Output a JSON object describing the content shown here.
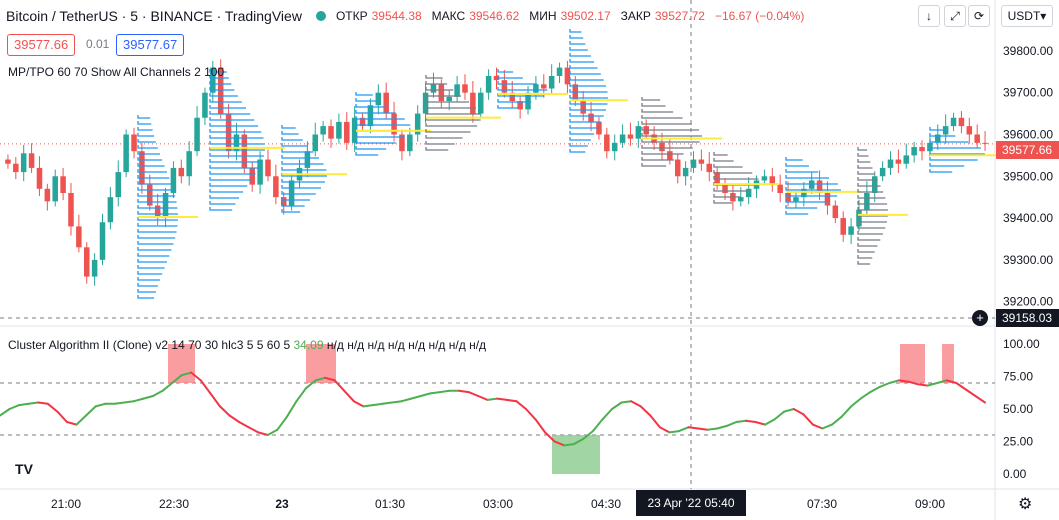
{
  "header": {
    "title": "Bitcoin / TetherUS · 5 · BINANCE · TradingView",
    "status_color": "#26a69a",
    "ohlc": [
      {
        "label": "ОТКР",
        "value": "39544.38"
      },
      {
        "label": "МАКС",
        "value": "39546.62"
      },
      {
        "label": "МИН",
        "value": "39502.17"
      },
      {
        "label": "ЗАКР",
        "value": "39527.72"
      }
    ],
    "change": "−16.67 (−0.04%)"
  },
  "trade": {
    "sell_price": "39577.66",
    "spread": "0.01",
    "buy_price": "39577.67"
  },
  "toolbar": {
    "down_icon": "↓",
    "expand_icon": "⤢",
    "refresh_icon": "⟳",
    "currency": "USDT▾"
  },
  "main_indicator": {
    "label": "MP/TPO 60 70 Show All Channels 2 100"
  },
  "sub_indicator": {
    "label": "Cluster Algorithm II (Clone) v2 14 70 30 hlc3 5 5 60 5",
    "value": "34.09",
    "na_values": [
      "н/д",
      "н/д",
      "н/д",
      "н/д",
      "н/д",
      "н/д",
      "н/д",
      "н/д"
    ]
  },
  "price_axis": {
    "ticks": [
      "39800.00",
      "39700.00",
      "39600.00",
      "39500.00",
      "39400.00",
      "39300.00",
      "39200.00"
    ],
    "current_price": "39577.66",
    "crosshair_price": "39158.03"
  },
  "osc_axis": {
    "ticks": [
      "100.00",
      "75.00",
      "50.00",
      "25.00",
      "0.00"
    ]
  },
  "time_axis": {
    "ticks": [
      "21:00",
      "22:30",
      "23",
      "01:30",
      "03:00",
      "04:30",
      "07:30",
      "09:00"
    ],
    "crosshair_date": "23 Apr '22  05:40"
  },
  "colors": {
    "up": "#26a69a",
    "down": "#ef5350",
    "profile_blue": "#2196f3",
    "profile_gray": "#787b86",
    "poc_yellow": "#ffeb3b"
  },
  "chart_data": {
    "type": "candlestick",
    "symbol": "Bitcoin / TetherUS",
    "interval": "5",
    "price_range": [
      39180,
      39850
    ],
    "closes": [
      39530,
      39510,
      39555,
      39520,
      39470,
      39440,
      39500,
      39460,
      39380,
      39330,
      39260,
      39300,
      39390,
      39450,
      39510,
      39600,
      39560,
      39480,
      39430,
      39400,
      39460,
      39520,
      39500,
      39560,
      39640,
      39700,
      39760,
      39650,
      39560,
      39600,
      39520,
      39480,
      39540,
      39500,
      39450,
      39430,
      39490,
      39520,
      39560,
      39600,
      39620,
      39590,
      39630,
      39580,
      39640,
      39620,
      39670,
      39700,
      39650,
      39600,
      39560,
      39600,
      39650,
      39700,
      39720,
      39680,
      39690,
      39720,
      39700,
      39650,
      39700,
      39740,
      39730,
      39700,
      39680,
      39660,
      39700,
      39720,
      39710,
      39740,
      39760,
      39720,
      39680,
      39650,
      39630,
      39600,
      39560,
      39580,
      39600,
      39590,
      39620,
      39600,
      39580,
      39560,
      39540,
      39500,
      39520,
      39540,
      39530,
      39510,
      39480,
      39460,
      39440,
      39450,
      39470,
      39490,
      39500,
      39480,
      39460,
      39440,
      39450,
      39470,
      39490,
      39460,
      39430,
      39400,
      39360,
      39380,
      39420,
      39460,
      39500,
      39520,
      39540,
      39530,
      39550,
      39570,
      39560,
      39580,
      39600,
      39620,
      39640,
      39620,
      39600,
      39580,
      39577.66
    ],
    "oscillator": {
      "range": [
        0,
        100
      ],
      "upper": 70,
      "lower": 30,
      "values": [
        45,
        50,
        53,
        54,
        55,
        54,
        48,
        40,
        38,
        45,
        52,
        54,
        54,
        55,
        56,
        58,
        60,
        64,
        70,
        76,
        78,
        72,
        62,
        52,
        45,
        40,
        36,
        32,
        30,
        34,
        44,
        56,
        66,
        72,
        74,
        72,
        64,
        56,
        52,
        53,
        54,
        55,
        56,
        58,
        60,
        62,
        63,
        64,
        64,
        63,
        60,
        57,
        58,
        57,
        56,
        50,
        42,
        32,
        25,
        22,
        23,
        27,
        33,
        42,
        50,
        55,
        56,
        52,
        45,
        36,
        32,
        33,
        36,
        35,
        34,
        35,
        37,
        40,
        41,
        40,
        38,
        42,
        48,
        50,
        46,
        38,
        35,
        38,
        44,
        52,
        58,
        63,
        67,
        70,
        72,
        71,
        69,
        68,
        70,
        72,
        70,
        65,
        60,
        55
      ]
    }
  }
}
